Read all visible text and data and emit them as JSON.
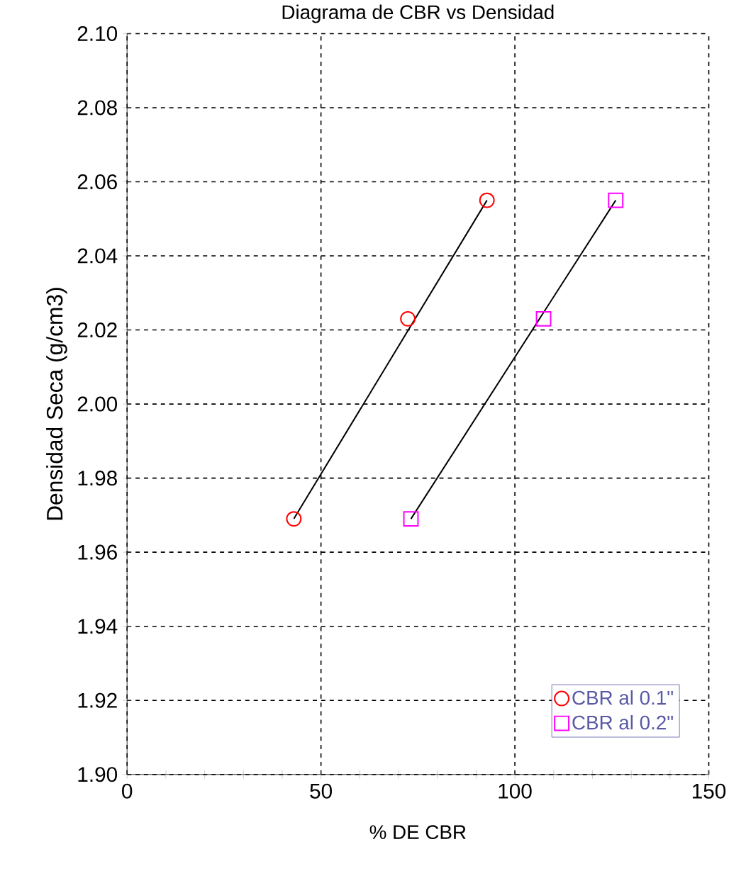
{
  "chart_data": {
    "type": "scatter",
    "title": "Diagrama de CBR vs Densidad",
    "xlabel": "% DE CBR",
    "ylabel": "Densidad Seca (g/cm3)",
    "xlim": [
      0,
      150
    ],
    "ylim": [
      1.9,
      2.1
    ],
    "xticks": [
      0,
      {
        "value": 10,
        "label": null
      },
      {
        "value": 20,
        "label": null
      },
      {
        "value": 30,
        "label": null
      },
      {
        "value": 40,
        "label": null
      },
      50,
      {
        "value": 60,
        "label": null
      },
      {
        "value": 70,
        "label": null
      },
      {
        "value": 80,
        "label": null
      },
      {
        "value": 90,
        "label": null
      },
      100,
      {
        "value": 110,
        "label": null
      },
      {
        "value": 120,
        "label": null
      },
      {
        "value": 130,
        "label": null
      },
      {
        "value": 140,
        "label": null
      },
      150
    ],
    "yticks": [
      {
        "value": 1.9,
        "label": "1.90"
      },
      {
        "value": 1.92,
        "label": "1.92"
      },
      {
        "value": 1.94,
        "label": "1.94"
      },
      {
        "value": 1.96,
        "label": "1.96"
      },
      {
        "value": 1.98,
        "label": "1.98"
      },
      {
        "value": 2.0,
        "label": "2.00"
      },
      {
        "value": 2.02,
        "label": "2.02"
      },
      {
        "value": 2.04,
        "label": "2.04"
      },
      {
        "value": 2.06,
        "label": "2.06"
      },
      {
        "value": 2.08,
        "label": "2.08"
      },
      {
        "value": 2.1,
        "label": "2.10"
      }
    ],
    "grid": true,
    "legend": "bottom right",
    "series": [
      {
        "name": "CBR al 0.1\"",
        "marker": "circle",
        "color": "#ff0000",
        "x": [
          43.0,
          72.4,
          92.8
        ],
        "values": [
          1.969,
          2.023,
          2.055
        ]
      },
      {
        "name": "CBR al 0.2\"",
        "marker": "square",
        "color": "#ff00ff",
        "x": [
          73.2,
          107.4,
          126.0
        ],
        "values": [
          1.969,
          2.023,
          2.055
        ]
      },
      {
        "type": "line",
        "color": "#000000",
        "x": [
          43.0,
          92.8
        ],
        "values": [
          1.969,
          2.055
        ]
      },
      {
        "type": "line",
        "color": "#000000",
        "x": [
          73.2,
          126.0
        ],
        "values": [
          1.969,
          2.055
        ]
      }
    ]
  }
}
